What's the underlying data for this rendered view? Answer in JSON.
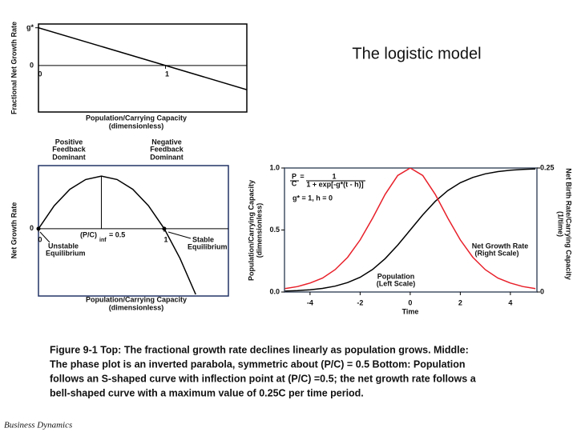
{
  "slide": {
    "title": "The logistic model",
    "caption": [
      "Figure 9-1  Top: The fractional growth rate declines linearly as population grows. Middle:",
      "The phase plot is an inverted parabola, symmetric about (P/C) = 0.5 Bottom: Population",
      "follows an S-shaped curve with inflection point at (P/C) =0.5; the net growth rate follows a",
      "bell-shaped curve with a maximum value of 0.25C per time period."
    ],
    "footer": "Business Dynamics"
  },
  "chart_data": [
    {
      "type": "line",
      "ylabel": "Fractional Net Growth Rate",
      "xlabel": [
        "Population/Carrying Capacity",
        "(dimensionless)"
      ],
      "x": [
        0,
        1.64
      ],
      "series": [
        {
          "color": "#000000",
          "values": [
            1,
            -0.64
          ]
        }
      ],
      "xlim": [
        0,
        1.64
      ],
      "ylim": [
        -1.23,
        1.1
      ],
      "xticks": [
        0,
        1
      ],
      "yticks": [
        {
          "value": 1,
          "label": "g*"
        },
        0
      ],
      "annotations": []
    },
    {
      "type": "line",
      "ylabel": "Net Growth Rate",
      "xlabel": [
        "Population/Carrying Capacity",
        "(dimensionless)"
      ],
      "x": [
        0,
        0.125,
        0.25,
        0.375,
        0.5,
        0.625,
        0.75,
        0.875,
        1,
        1.125,
        1.25
      ],
      "series": [
        {
          "color": "#000000",
          "values": [
            0,
            0.109,
            0.1875,
            0.234,
            0.25,
            0.234,
            0.1875,
            0.109,
            0,
            -0.141,
            -0.3125
          ]
        }
      ],
      "xlim": [
        0,
        1.51
      ],
      "ylim": [
        -0.32,
        0.3
      ],
      "xticks": [
        0,
        1
      ],
      "yticks": [
        0
      ],
      "annotations": [
        "Positive",
        "Feedback",
        "Dominant",
        "Negative",
        "Feedback",
        "Dominant",
        "(P/C)",
        "inf",
        "= 0.5",
        "Unstable",
        "Equilibrium",
        "Stable",
        "Equilibrium"
      ]
    },
    {
      "type": "line",
      "xlabel": [
        "Time"
      ],
      "ylabel": [
        "Population/Carrying Capacity",
        "(dimensionless)"
      ],
      "y2label": [
        "Net Birth Rate/Carrying Capacity",
        "(1/time)"
      ],
      "x": [
        -5,
        -4.5,
        -4,
        -3.5,
        -3,
        -2.5,
        -2,
        -1.5,
        -1,
        -0.5,
        0,
        0.5,
        1,
        1.5,
        2,
        2.5,
        3,
        3.5,
        4,
        4.5,
        5
      ],
      "series": [
        {
          "name": "Population",
          "color": "#000000",
          "values": [
            0.007,
            0.011,
            0.018,
            0.029,
            0.047,
            0.076,
            0.119,
            0.182,
            0.269,
            0.378,
            0.5,
            0.622,
            0.731,
            0.818,
            0.881,
            0.924,
            0.953,
            0.971,
            0.982,
            0.989,
            0.993
          ]
        },
        {
          "name": "Net Growth Rate",
          "color": "#e8202a",
          "axis": "y2",
          "values": [
            0.007,
            0.011,
            0.018,
            0.028,
            0.045,
            0.07,
            0.105,
            0.149,
            0.197,
            0.235,
            0.25,
            0.235,
            0.197,
            0.149,
            0.105,
            0.07,
            0.045,
            0.028,
            0.018,
            0.011,
            0.007
          ]
        }
      ],
      "xlim": [
        -5.02,
        5.06
      ],
      "ylim": [
        0,
        1
      ],
      "y2lim": [
        0,
        0.25
      ],
      "xticks": [
        -4,
        -2,
        0,
        2,
        4
      ],
      "yticks": [
        {
          "value": 0,
          "label": "0.0"
        },
        0.5,
        {
          "value": 1,
          "label": "1.0"
        }
      ],
      "y2ticks": [
        0,
        0.25
      ],
      "annotations": [
        "P",
        "C",
        "=",
        "1",
        "1 + exp[-g*(t - h)]",
        "g* = 1, h = 0",
        "(Right Scale)",
        "(Left Scale)"
      ]
    }
  ]
}
